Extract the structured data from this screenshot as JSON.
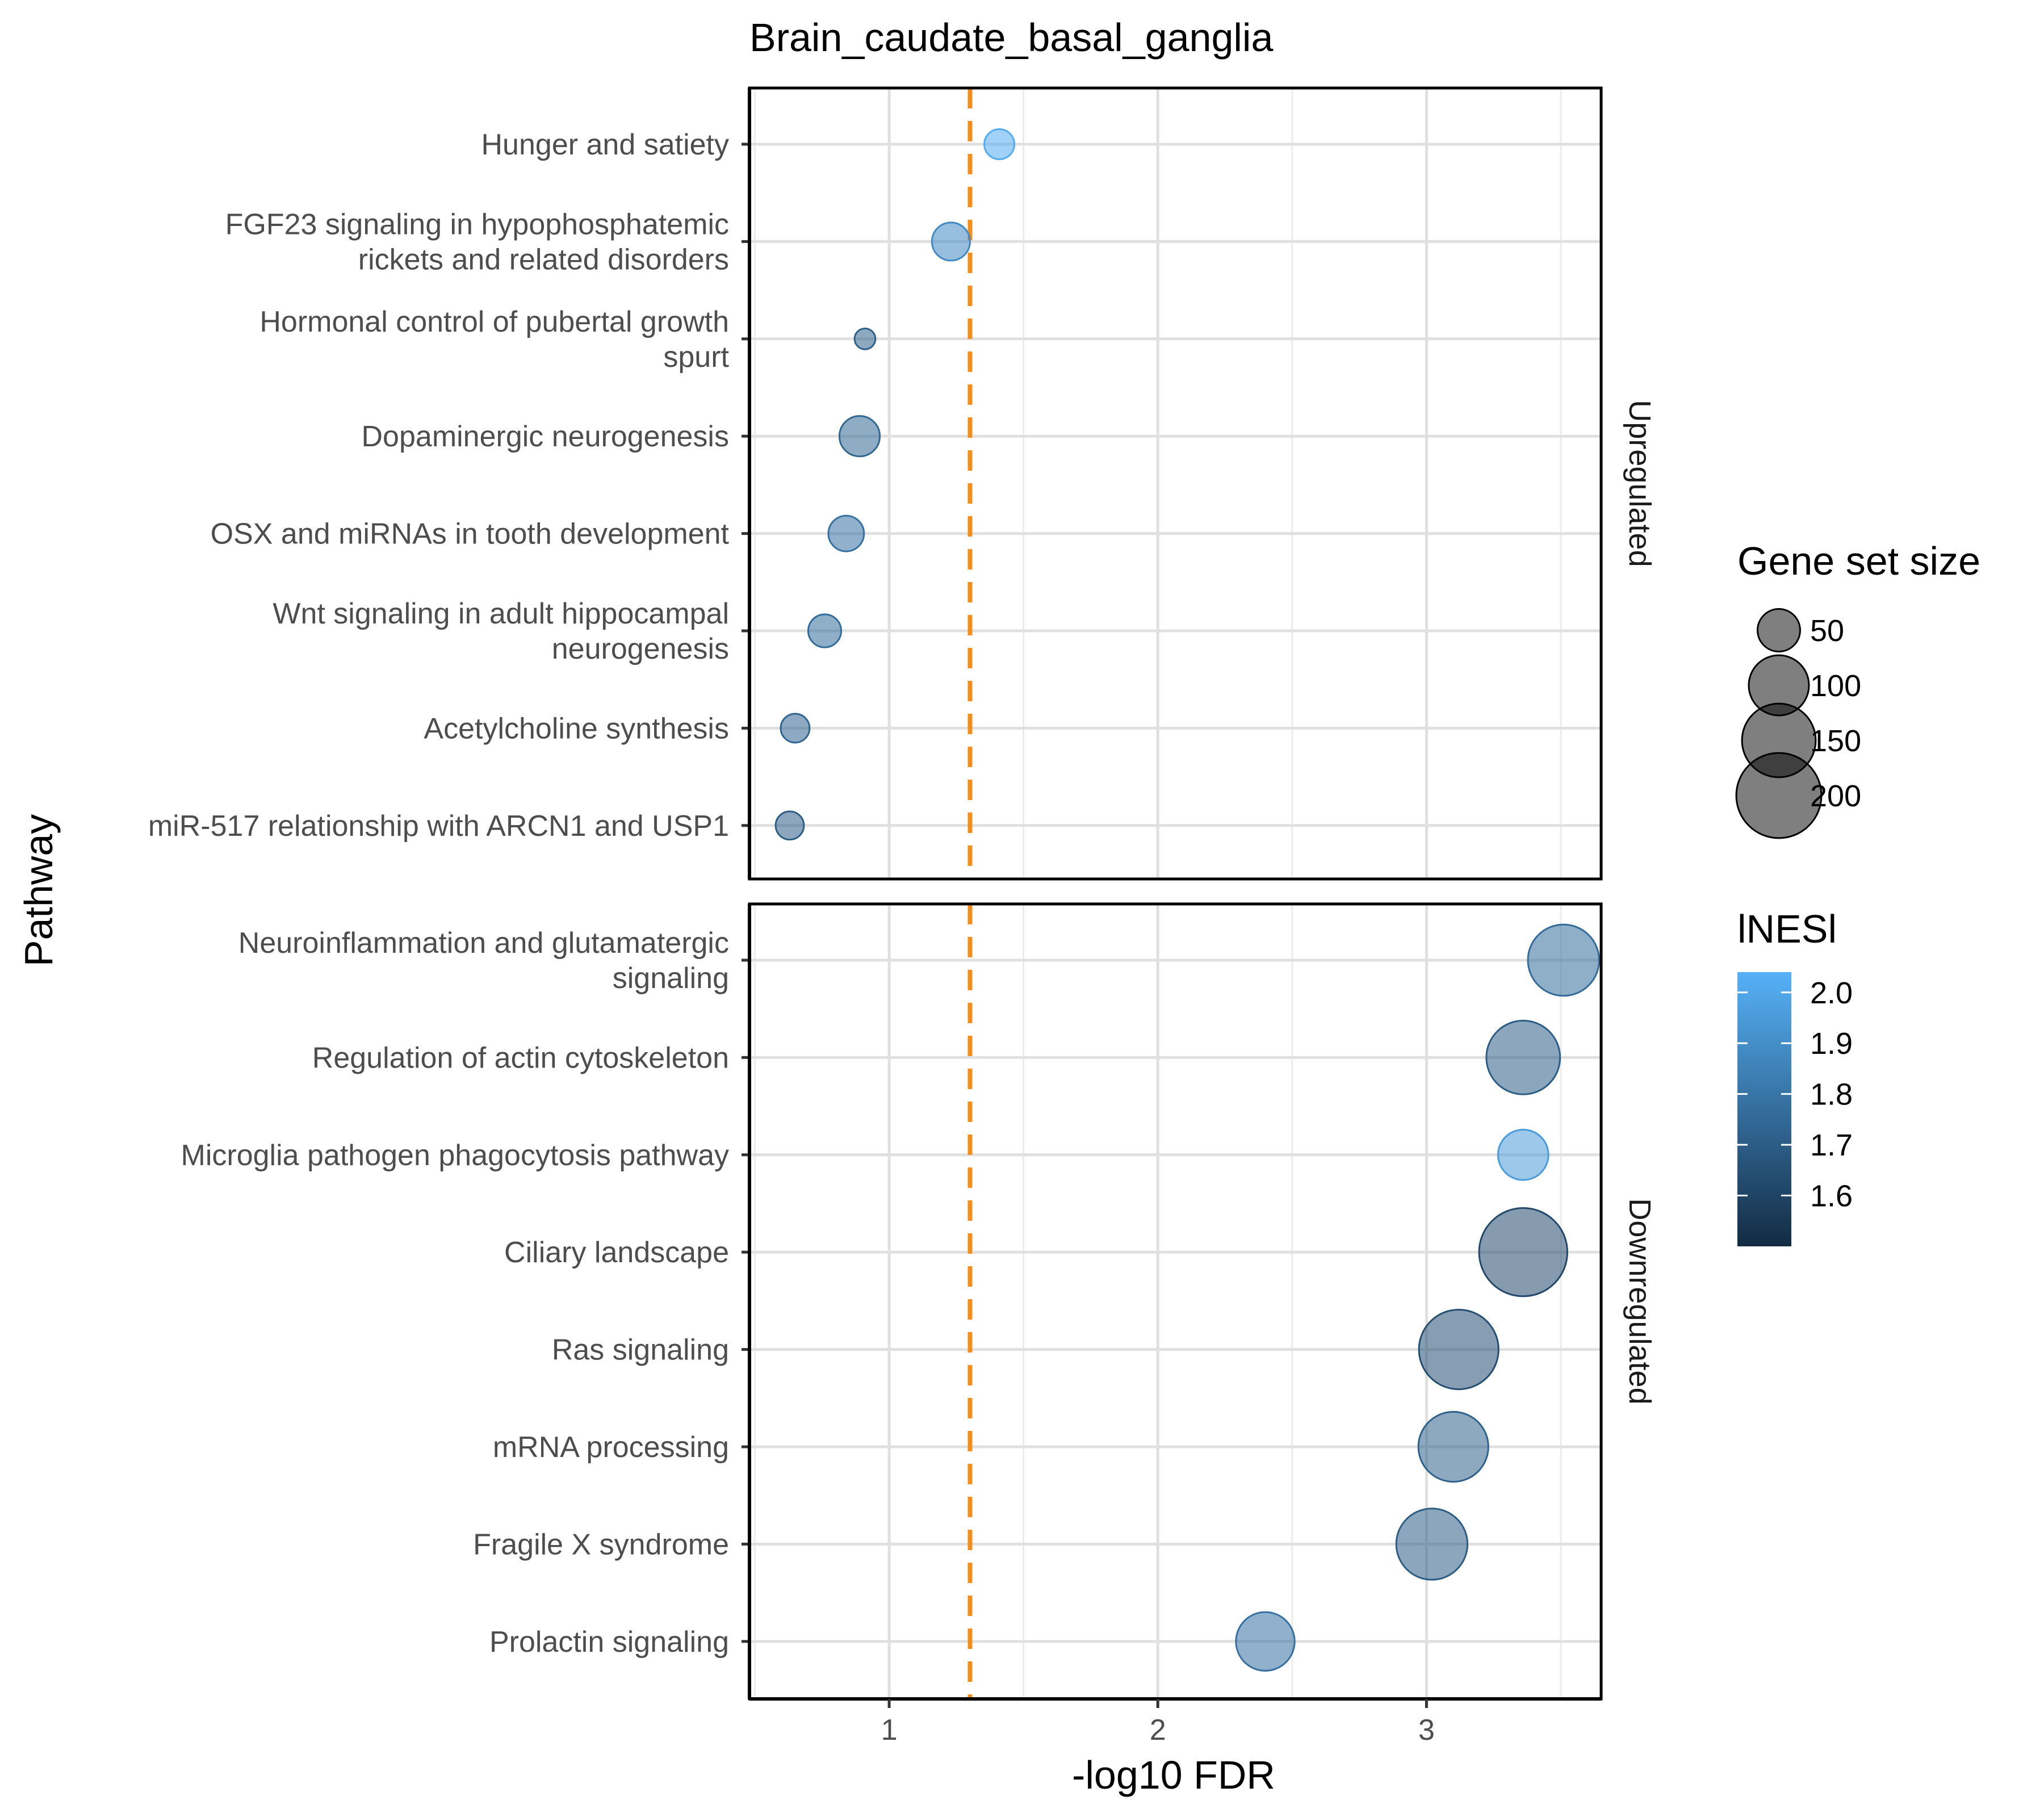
{
  "chart_data": {
    "type": "scatter",
    "title": "Brain_caudate_basal_ganglia",
    "xlabel": "-log10 FDR",
    "ylabel": "Pathway",
    "xlim": [
      0.48,
      3.65
    ],
    "x_ticks": [
      "1",
      "2",
      "3"
    ],
    "x_tick_values": [
      1,
      2,
      3
    ],
    "threshold_line": {
      "x": 1.301,
      "color": "#F28E1C",
      "style": "dashed"
    },
    "grid": true,
    "legend_position": "right",
    "size_legend": {
      "title": "Gene set size",
      "values": [
        50,
        100,
        150,
        200
      ],
      "labels": [
        "50",
        "100",
        "150",
        "200"
      ]
    },
    "color_legend": {
      "title": "lNESl",
      "low_color": "#132B43",
      "high_color": "#56B1F7",
      "range": [
        1.5,
        2.04
      ],
      "ticks": [
        1.6,
        1.7,
        1.8,
        1.9,
        2.0
      ],
      "labels": [
        "1.6",
        "1.7",
        "1.8",
        "1.9",
        "2.0"
      ]
    },
    "panels": [
      {
        "strip_label": "Upregulated",
        "points": [
          {
            "label": [
              "Hunger and satiety"
            ],
            "x": 1.41,
            "nes": 2.02,
            "size": 25
          },
          {
            "label": [
              "FGF23 signaling in hypophosphatemic",
              "rickets and related disorders"
            ],
            "x": 1.23,
            "nes": 1.88,
            "size": 40
          },
          {
            "label": [
              "Hormonal control of pubertal growth",
              "spurt"
            ],
            "x": 0.91,
            "nes": 1.72,
            "size": 12
          },
          {
            "label": [
              "Dopaminergic neurogenesis"
            ],
            "x": 0.89,
            "nes": 1.74,
            "size": 45
          },
          {
            "label": [
              "OSX and miRNAs in tooth development"
            ],
            "x": 0.84,
            "nes": 1.78,
            "size": 35
          },
          {
            "label": [
              "Wnt signaling in adult hippocampal",
              "neurogenesis"
            ],
            "x": 0.76,
            "nes": 1.76,
            "size": 30
          },
          {
            "label": [
              "Acetylcholine synthesis"
            ],
            "x": 0.65,
            "nes": 1.73,
            "size": 23
          },
          {
            "label": [
              "miR-517 relationship with ARCN1 and USP1"
            ],
            "x": 0.63,
            "nes": 1.7,
            "size": 22
          }
        ]
      },
      {
        "strip_label": "Downregulated",
        "points": [
          {
            "label": [
              "Neuroinflammation and glutamatergic",
              "signaling"
            ],
            "x": 3.51,
            "nes": 1.76,
            "size": 140
          },
          {
            "label": [
              "Regulation of actin cytoskeleton"
            ],
            "x": 3.36,
            "nes": 1.7,
            "size": 150
          },
          {
            "label": [
              "Microglia pathogen phagocytosis pathway"
            ],
            "x": 3.36,
            "nes": 1.95,
            "size": 70
          },
          {
            "label": [
              "Ciliary landscape"
            ],
            "x": 3.36,
            "nes": 1.62,
            "size": 215
          },
          {
            "label": [
              "Ras signaling"
            ],
            "x": 3.12,
            "nes": 1.64,
            "size": 175
          },
          {
            "label": [
              "mRNA processing"
            ],
            "x": 3.1,
            "nes": 1.72,
            "size": 135
          },
          {
            "label": [
              "Fragile X syndrome"
            ],
            "x": 3.02,
            "nes": 1.7,
            "size": 140
          },
          {
            "label": [
              "Prolactin signaling"
            ],
            "x": 2.4,
            "nes": 1.78,
            "size": 95
          }
        ]
      }
    ]
  }
}
